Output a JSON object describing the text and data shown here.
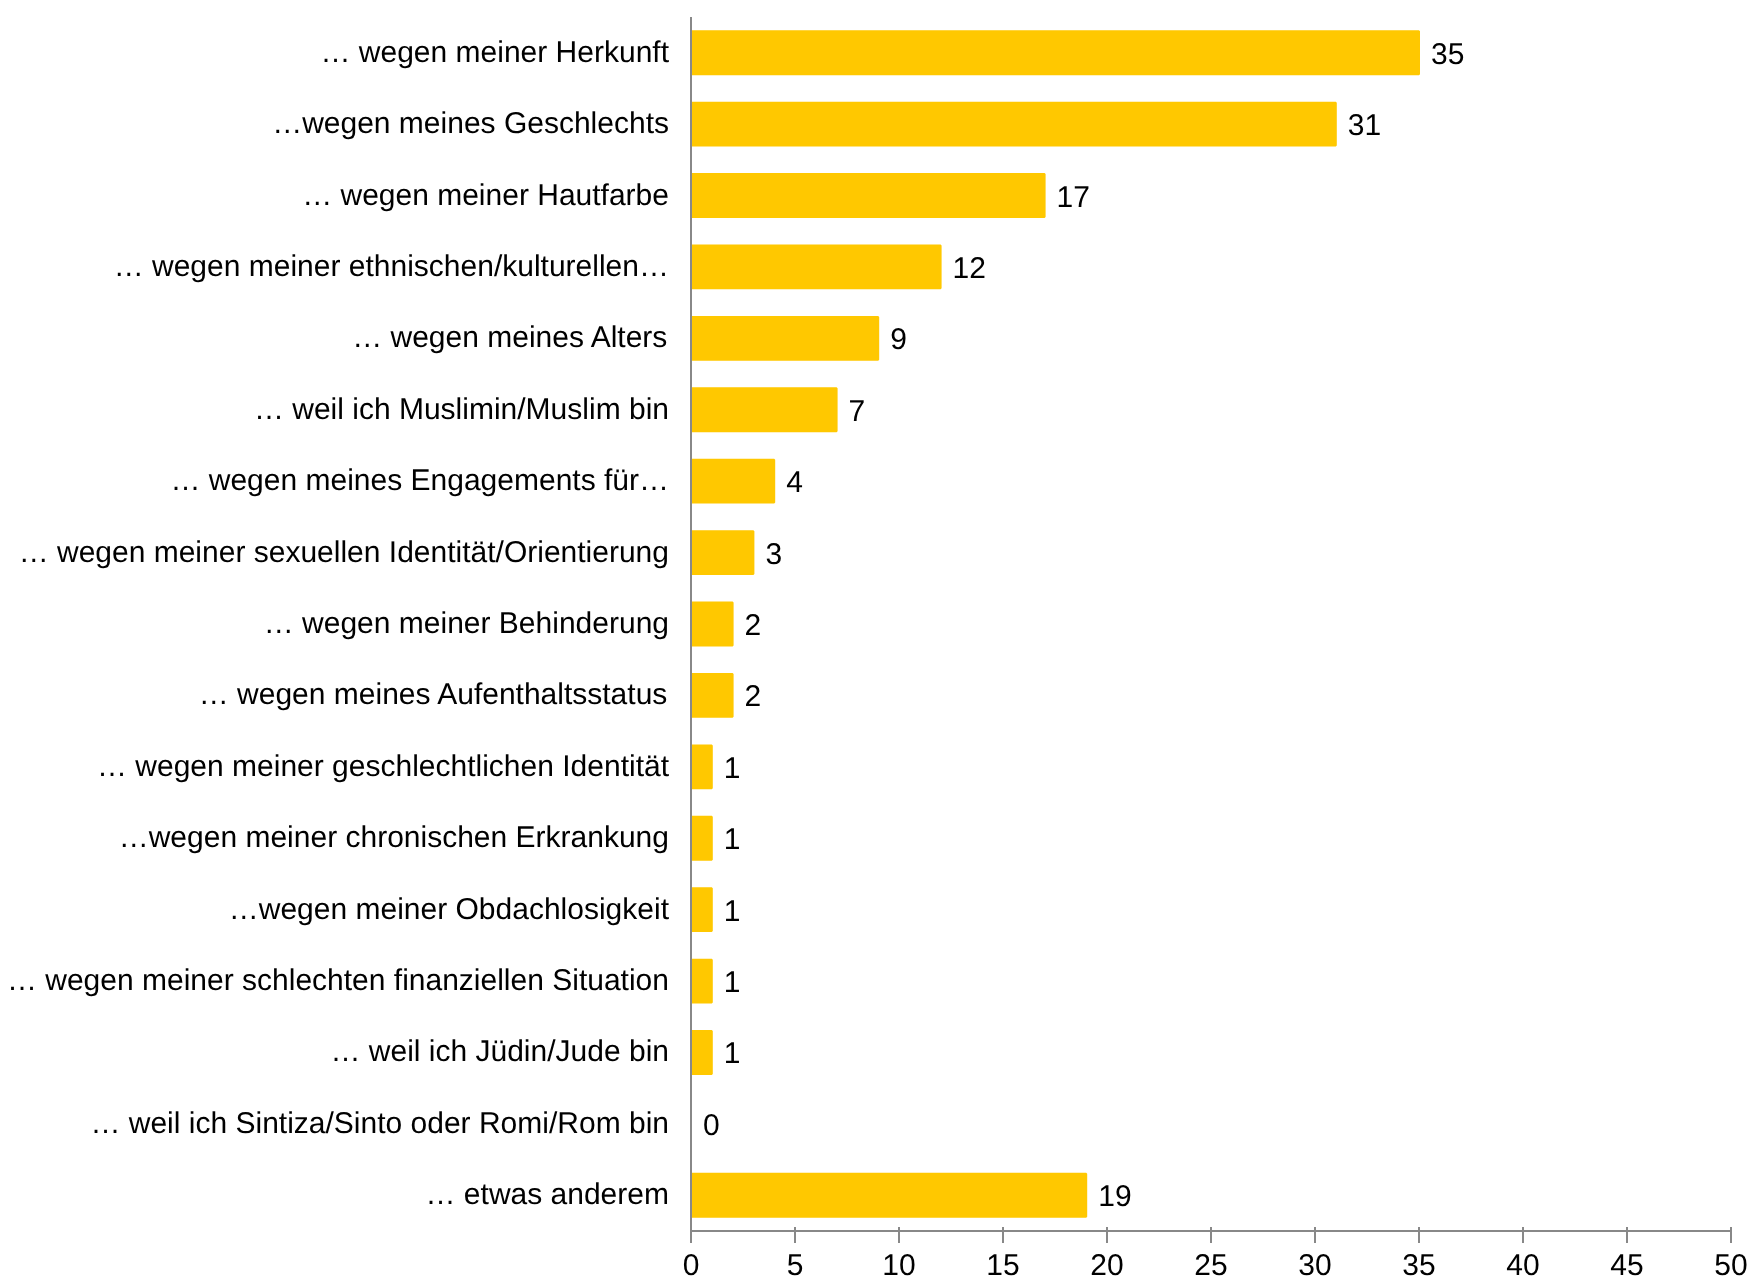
{
  "chart_data": {
    "type": "bar",
    "orientation": "horizontal",
    "categories": [
      "… wegen meiner Herkunft",
      "…wegen meines Geschlechts",
      "… wegen meiner Hautfarbe",
      "… wegen meiner ethnischen/kulturellen…",
      "… wegen meines Alters",
      "… weil ich Muslimin/Muslim bin",
      "… wegen meines Engagements für…",
      "… wegen meiner sexuellen Identität/Orientierung",
      "… wegen meiner Behinderung",
      "… wegen meines Aufenthaltsstatus",
      "… wegen meiner geschlechtlichen Identität",
      "…wegen meiner chronischen Erkrankung",
      "…wegen meiner Obdachlosigkeit",
      "… wegen meiner schlechten finanziellen Situation",
      "… weil ich Jüdin/Jude bin",
      "… weil ich Sintiza/Sinto oder Romi/Rom bin",
      "… etwas anderem"
    ],
    "values": [
      35,
      31,
      17,
      12,
      9,
      7,
      4,
      3,
      2,
      2,
      1,
      1,
      1,
      1,
      1,
      0,
      19
    ],
    "color": "#ffc800",
    "xlim": [
      0,
      50
    ],
    "xticks": [
      0,
      5,
      10,
      15,
      20,
      25,
      30,
      35,
      40,
      45,
      50
    ],
    "data_labels": true
  }
}
